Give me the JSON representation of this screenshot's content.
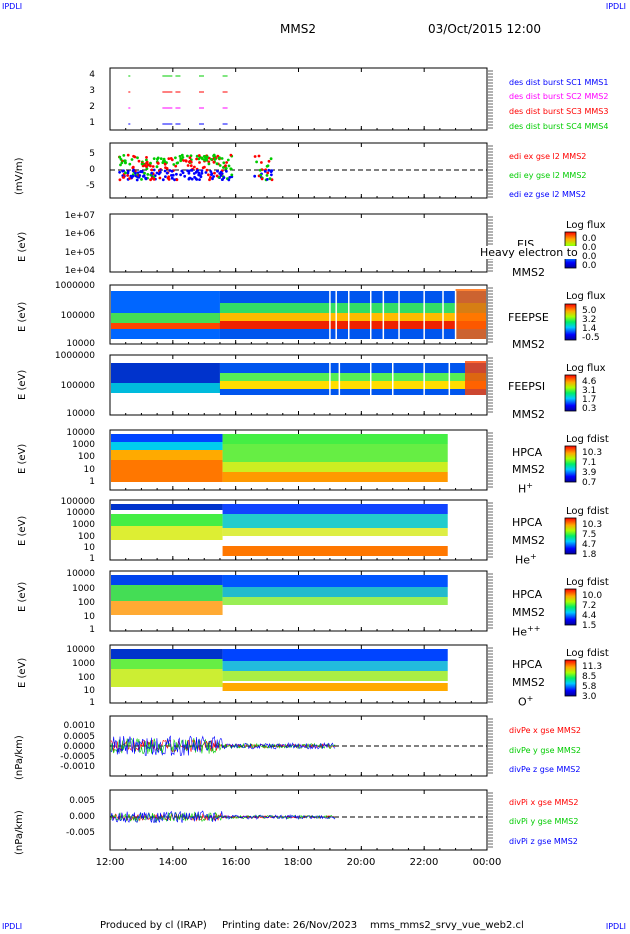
{
  "corners": {
    "tl": "IPDLI",
    "tr": "IPDLI",
    "bl": "IPDLI",
    "br": "IPDLI"
  },
  "header": {
    "spacecraft": "MMS2",
    "datetime": "03/Oct/2015 12:00"
  },
  "footer": {
    "produced_by": "Produced by cl (IRAP)",
    "printing_date": "Printing date: 26/Nov/2023",
    "filename": "mms_mms2_srvy_vue_web2.cl"
  },
  "x_ticks": [
    "12:00",
    "14:00",
    "16:00",
    "18:00",
    "20:00",
    "22:00",
    "00:00"
  ],
  "colors": {
    "red": "#ff0000",
    "green": "#00cc00",
    "blue": "#0000ff",
    "magenta": "#ff00ff",
    "black": "#000000"
  },
  "panels": {
    "burst": {
      "yticks": [
        "4",
        "3",
        "2",
        "1"
      ],
      "legend": [
        {
          "text": "des dist burst SC1 MMS1",
          "color": "#0000ff"
        },
        {
          "text": "des dist burst SC2 MMS2",
          "color": "#ff00ff"
        },
        {
          "text": "des dist burst SC3 MMS3",
          "color": "#ff0000"
        },
        {
          "text": "des dist burst SC4 MMS4",
          "color": "#00cc00"
        }
      ]
    },
    "edi": {
      "ylabel": "(mV/m)",
      "yticks": [
        "5",
        "0",
        "-5"
      ],
      "legend": [
        {
          "text": "edi ex gse l2 MMS2",
          "color": "#ff0000"
        },
        {
          "text": "edi ey gse l2 MMS2",
          "color": "#00cc00"
        },
        {
          "text": "edi ez gse l2 MMS2",
          "color": "#0000ff"
        }
      ]
    },
    "eis": {
      "ylabel": "E (eV)",
      "yticks": [
        "1e+07",
        "1e+06",
        "1e+05",
        "1e+04"
      ],
      "inst": "EIS",
      "sc": "MMS2",
      "overlay": "Heavy electron to",
      "cb_title": "Log flux",
      "cb_values": [
        "0.0",
        "0.0",
        "0.0",
        "0.0"
      ]
    },
    "feepse": {
      "ylabel": "E (eV)",
      "yticks": [
        "1000000",
        "100000",
        "10000"
      ],
      "inst": "FEEPSE",
      "sc": "MMS2",
      "cb_title": "Log flux",
      "cb_values": [
        "5.0",
        "3.2",
        "1.4",
        "-0.5"
      ]
    },
    "feepsi": {
      "ylabel": "E (eV)",
      "yticks": [
        "1000000",
        "100000",
        "10000"
      ],
      "inst": "FEEPSI",
      "sc": "MMS2",
      "cb_title": "Log flux",
      "cb_values": [
        "4.6",
        "3.1",
        "1.7",
        "0.3"
      ]
    },
    "hpca_h": {
      "ylabel": "E (eV)",
      "yticks": [
        "10000",
        "1000",
        "100",
        "10",
        "1"
      ],
      "inst": "HPCA",
      "sc": "MMS2",
      "species": "H",
      "charge": "+",
      "cb_title": "Log fdist",
      "cb_values": [
        "10.3",
        "7.1",
        "3.9",
        "0.7"
      ]
    },
    "hpca_he": {
      "ylabel": "E (eV)",
      "yticks": [
        "100000",
        "10000",
        "1000",
        "100",
        "10",
        "1"
      ],
      "inst": "HPCA",
      "sc": "MMS2",
      "species": "He",
      "charge": "+",
      "cb_title": "Log fdist",
      "cb_values": [
        "10.3",
        "7.5",
        "4.7",
        "1.8"
      ]
    },
    "hpca_hepp": {
      "ylabel": "E (eV)",
      "yticks": [
        "10000",
        "1000",
        "100",
        "10",
        "1"
      ],
      "inst": "HPCA",
      "sc": "MMS2",
      "species": "He",
      "charge": "++",
      "cb_title": "Log fdist",
      "cb_values": [
        "10.0",
        "7.2",
        "4.4",
        "1.5"
      ]
    },
    "hpca_o": {
      "ylabel": "E (eV)",
      "yticks": [
        "10000",
        "1000",
        "100",
        "10",
        "1"
      ],
      "inst": "HPCA",
      "sc": "MMS2",
      "species": "O",
      "charge": "+",
      "cb_title": "Log fdist",
      "cb_values": [
        "11.3",
        "8.5",
        "5.8",
        "3.0"
      ]
    },
    "divpe": {
      "ylabel": "(nPa/km)",
      "yticks": [
        "0.0010",
        "0.0005",
        "0.0000",
        "-0.0005",
        "-0.0010"
      ],
      "legend": [
        {
          "text": "divPe x gse MMS2",
          "color": "#ff0000"
        },
        {
          "text": "divPe y gse MMS2",
          "color": "#00cc00"
        },
        {
          "text": "divPe z gse MMS2",
          "color": "#0000ff"
        }
      ]
    },
    "divpi": {
      "ylabel": "(nPa/km)",
      "yticks": [
        "0.005",
        "0.000",
        "-0.005"
      ],
      "legend": [
        {
          "text": "divPi x gse MMS2",
          "color": "#ff0000"
        },
        {
          "text": "divPi y gse MMS2",
          "color": "#00cc00"
        },
        {
          "text": "divPi z gse MMS2",
          "color": "#0000ff"
        }
      ]
    }
  },
  "chart_data": {
    "type": "heatmap",
    "x_range": [
      "12:00",
      "00:00"
    ],
    "burst_intervals": [
      {
        "sc": 4,
        "times": [
          "12:35",
          "13:40",
          "14:05",
          "14:50",
          "15:35"
        ]
      },
      {
        "sc": 3,
        "times": [
          "12:35",
          "13:40",
          "14:05",
          "14:50",
          "15:35"
        ]
      },
      {
        "sc": 2,
        "times": [
          "12:35",
          "13:40",
          "14:05",
          "14:50",
          "15:35"
        ]
      },
      {
        "sc": 1,
        "times": [
          "12:35",
          "13:40",
          "14:05",
          "14:50",
          "15:35"
        ]
      }
    ],
    "edi": {
      "ylim": [
        -9,
        9
      ],
      "approx_range_mVm": [
        -4,
        6
      ],
      "data_until": "17:30"
    },
    "feepse": {
      "ylim": [
        10000,
        1000000
      ],
      "log": true
    },
    "feepsi": {
      "ylim": [
        10000,
        1000000
      ],
      "log": true
    },
    "hpca": {
      "data_until": "22:45",
      "ylim": [
        1,
        30000
      ],
      "log": true
    },
    "divpe": {
      "ylim": [
        -0.0015,
        0.0015
      ],
      "data_until": "19:10"
    },
    "divpi": {
      "ylim": [
        -0.008,
        0.008
      ],
      "data_until": "19:10"
    }
  }
}
